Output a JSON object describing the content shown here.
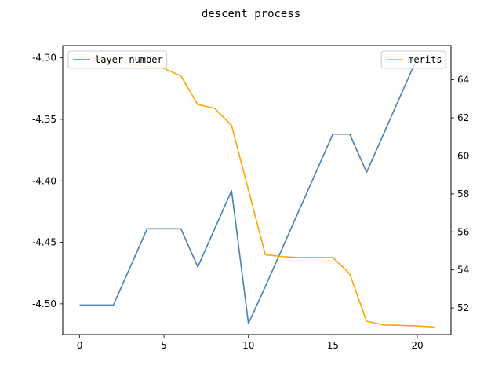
{
  "chart_data": {
    "type": "line",
    "title": "descent_process",
    "x": [
      0,
      1,
      2,
      3,
      4,
      5,
      6,
      7,
      8,
      9,
      10,
      11,
      12,
      13,
      14,
      15,
      16,
      17,
      18,
      19,
      20,
      21
    ],
    "xlim": [
      -1,
      22
    ],
    "xticks": [
      0,
      5,
      10,
      15,
      20
    ],
    "xtick_labels": [
      "0",
      "5",
      "10",
      "15",
      "20"
    ],
    "left_axis": {
      "ylim": [
        -4.525,
        -4.29
      ],
      "ticks": [
        -4.3,
        -4.35,
        -4.4,
        -4.45,
        -4.5
      ],
      "tick_labels": [
        "-4.30",
        "-4.35",
        "-4.40",
        "-4.45",
        "-4.50"
      ]
    },
    "right_axis": {
      "ylim": [
        50.6,
        65.8
      ],
      "ticks": [
        52,
        54,
        56,
        58,
        60,
        62,
        64
      ],
      "tick_labels": [
        "52",
        "54",
        "56",
        "58",
        "60",
        "62",
        "64"
      ]
    },
    "grid": false,
    "series": [
      {
        "name": "layer number",
        "axis": "left",
        "color": "#4682b4",
        "legend_position": "upper left",
        "values": [
          -4.501,
          -4.501,
          -4.501,
          -4.47,
          -4.439,
          -4.439,
          -4.439,
          -4.47,
          -4.439,
          -4.408,
          -4.516,
          -4.486,
          -4.455,
          -4.424,
          -4.393,
          -4.362,
          -4.362,
          -4.393,
          -4.362,
          -4.331,
          -4.3,
          -4.3
        ]
      },
      {
        "name": "merits",
        "axis": "right",
        "color": "#ffa500",
        "legend_position": "upper right",
        "values": [
          65.2,
          65.1,
          64.9,
          64.8,
          64.7,
          64.6,
          64.2,
          62.7,
          62.5,
          61.6,
          58.2,
          54.8,
          54.7,
          54.65,
          54.65,
          54.65,
          53.8,
          51.3,
          51.1,
          51.08,
          51.05,
          51.0
        ]
      }
    ]
  }
}
